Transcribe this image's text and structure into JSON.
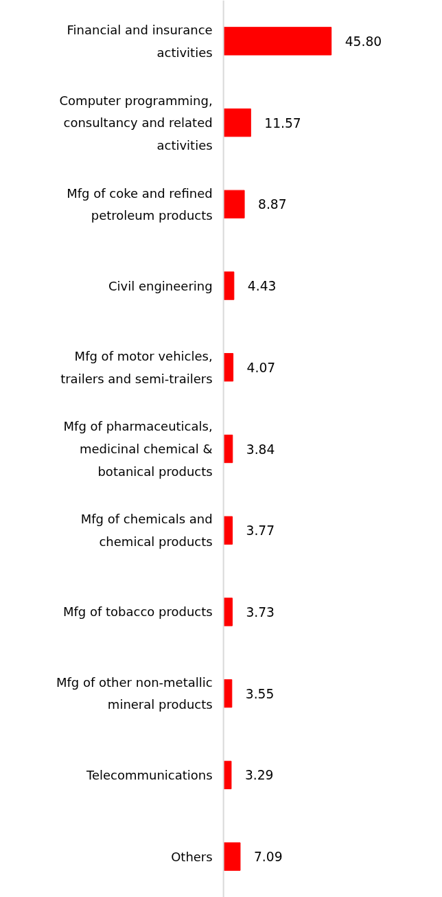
{
  "chart_data": {
    "type": "bar",
    "orientation": "horizontal",
    "categories": [
      "Financial and insurance activities",
      "Computer programming, consultancy and related activities",
      "Mfg of coke and refined petroleum products",
      "Civil engineering",
      "Mfg of motor vehicles, trailers and semi-trailers",
      "Mfg of pharmaceuticals, medicinal chemical & botanical products",
      "Mfg of chemicals and chemical products",
      "Mfg of tobacco products",
      "Mfg of other non-metallic mineral products",
      "Telecommunications",
      "Others"
    ],
    "values": [
      45.8,
      11.57,
      8.87,
      4.43,
      4.07,
      3.84,
      3.77,
      3.73,
      3.55,
      3.29,
      7.09
    ],
    "value_labels": [
      "45.80",
      "11.57",
      "8.87",
      "4.43",
      "4.07",
      "3.84",
      "3.77",
      "3.73",
      "3.55",
      "3.29",
      "7.09"
    ],
    "color": "#ff0000",
    "grid": false
  }
}
